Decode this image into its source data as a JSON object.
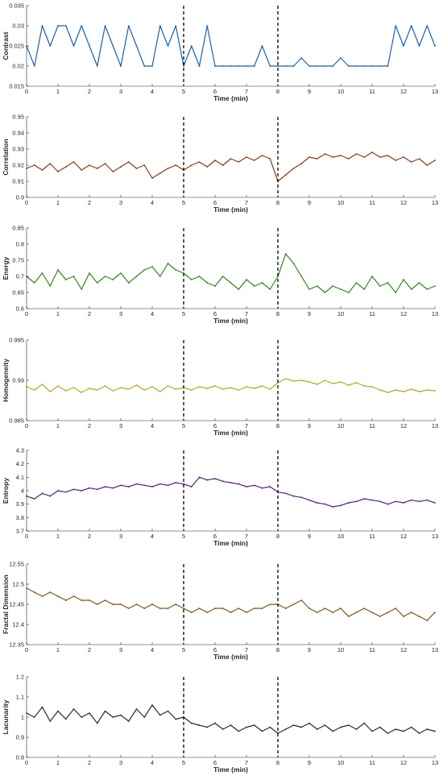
{
  "chart_data": {
    "type": "line",
    "panel_count": 7,
    "shared_x": {
      "label": "Time (min)",
      "xlim": [
        0,
        13
      ],
      "ticks": [
        "0",
        "1",
        "2",
        "3",
        "4",
        "5",
        "6",
        "7",
        "8",
        "9",
        "10",
        "11",
        "12",
        "13"
      ]
    },
    "vertical_markers_x": [
      5,
      8
    ],
    "marker_style": "black dashed lines",
    "grid": false,
    "legend": "none",
    "panels": [
      {
        "ylabel": "Contrast",
        "ylim": [
          0.015,
          0.035
        ],
        "yticks": [
          "0.015",
          "0.02",
          "0.025",
          "0.03",
          "0.035"
        ],
        "color": "#1f5fad",
        "series": {
          "x": [
            0,
            0.25,
            0.5,
            0.75,
            1,
            1.25,
            1.5,
            1.75,
            2,
            2.25,
            2.5,
            2.75,
            3,
            3.25,
            3.5,
            3.75,
            4,
            4.25,
            4.5,
            4.75,
            5,
            5.25,
            5.5,
            5.75,
            6,
            6.25,
            6.5,
            6.75,
            7,
            7.25,
            7.5,
            7.75,
            8,
            8.25,
            8.5,
            8.75,
            9,
            9.25,
            9.5,
            9.75,
            10,
            10.25,
            10.5,
            10.75,
            11,
            11.25,
            11.5,
            11.75,
            12,
            12.25,
            12.5,
            12.75,
            13
          ],
          "values": [
            0.025,
            0.02,
            0.03,
            0.025,
            0.03,
            0.03,
            0.025,
            0.03,
            0.025,
            0.02,
            0.03,
            0.025,
            0.02,
            0.03,
            0.025,
            0.02,
            0.02,
            0.03,
            0.025,
            0.03,
            0.02,
            0.025,
            0.02,
            0.03,
            0.02,
            0.02,
            0.02,
            0.02,
            0.02,
            0.02,
            0.025,
            0.02,
            0.02,
            0.02,
            0.02,
            0.022,
            0.02,
            0.02,
            0.02,
            0.02,
            0.022,
            0.02,
            0.02,
            0.02,
            0.02,
            0.02,
            0.02,
            0.03,
            0.025,
            0.03,
            0.025,
            0.03,
            0.025
          ]
        }
      },
      {
        "ylabel": "Correlation",
        "ylim": [
          0.9,
          0.95
        ],
        "yticks": [
          "0.9",
          "0.91",
          "0.92",
          "0.93",
          "0.94",
          "0.95"
        ],
        "color": "#8a3a1e",
        "series": {
          "x": [
            0,
            0.25,
            0.5,
            0.75,
            1,
            1.25,
            1.5,
            1.75,
            2,
            2.25,
            2.5,
            2.75,
            3,
            3.25,
            3.5,
            3.75,
            4,
            4.25,
            4.5,
            4.75,
            5,
            5.25,
            5.5,
            5.75,
            6,
            6.25,
            6.5,
            6.75,
            7,
            7.25,
            7.5,
            7.75,
            8,
            8.25,
            8.5,
            8.75,
            9,
            9.25,
            9.5,
            9.75,
            10,
            10.25,
            10.5,
            10.75,
            11,
            11.25,
            11.5,
            11.75,
            12,
            12.25,
            12.5,
            12.75,
            13
          ],
          "values": [
            0.918,
            0.92,
            0.917,
            0.921,
            0.916,
            0.919,
            0.922,
            0.917,
            0.92,
            0.918,
            0.921,
            0.916,
            0.919,
            0.922,
            0.918,
            0.92,
            0.912,
            0.915,
            0.918,
            0.92,
            0.917,
            0.92,
            0.922,
            0.919,
            0.923,
            0.92,
            0.924,
            0.922,
            0.925,
            0.923,
            0.926,
            0.924,
            0.91,
            0.914,
            0.918,
            0.921,
            0.925,
            0.924,
            0.927,
            0.925,
            0.926,
            0.924,
            0.927,
            0.925,
            0.928,
            0.925,
            0.926,
            0.923,
            0.925,
            0.922,
            0.924,
            0.92,
            0.923
          ]
        }
      },
      {
        "ylabel": "Energy",
        "ylim": [
          0.6,
          0.85
        ],
        "yticks": [
          "0.6",
          "0.65",
          "0.7",
          "0.75",
          "0.8",
          "0.85"
        ],
        "color": "#2e8a17",
        "series": {
          "x": [
            0,
            0.25,
            0.5,
            0.75,
            1,
            1.25,
            1.5,
            1.75,
            2,
            2.25,
            2.5,
            2.75,
            3,
            3.25,
            3.5,
            3.75,
            4,
            4.25,
            4.5,
            4.75,
            5,
            5.25,
            5.5,
            5.75,
            6,
            6.25,
            6.5,
            6.75,
            7,
            7.25,
            7.5,
            7.75,
            8,
            8.25,
            8.5,
            8.75,
            9,
            9.25,
            9.5,
            9.75,
            10,
            10.25,
            10.5,
            10.75,
            11,
            11.25,
            11.5,
            11.75,
            12,
            12.25,
            12.5,
            12.75,
            13
          ],
          "values": [
            0.7,
            0.68,
            0.71,
            0.67,
            0.72,
            0.69,
            0.7,
            0.66,
            0.71,
            0.68,
            0.7,
            0.69,
            0.71,
            0.68,
            0.7,
            0.72,
            0.73,
            0.7,
            0.74,
            0.72,
            0.71,
            0.69,
            0.7,
            0.68,
            0.67,
            0.7,
            0.68,
            0.66,
            0.69,
            0.67,
            0.68,
            0.66,
            0.7,
            0.77,
            0.74,
            0.7,
            0.66,
            0.67,
            0.65,
            0.67,
            0.66,
            0.65,
            0.68,
            0.66,
            0.7,
            0.67,
            0.68,
            0.65,
            0.69,
            0.66,
            0.68,
            0.66,
            0.67
          ]
        }
      },
      {
        "ylabel": "Homogeneity",
        "ylim": [
          0.985,
          0.995
        ],
        "yticks": [
          "0.985",
          "0.99",
          "0.995"
        ],
        "color": "#b8a825",
        "series": {
          "x": [
            0,
            0.25,
            0.5,
            0.75,
            1,
            1.25,
            1.5,
            1.75,
            2,
            2.25,
            2.5,
            2.75,
            3,
            3.25,
            3.5,
            3.75,
            4,
            4.25,
            4.5,
            4.75,
            5,
            5.25,
            5.5,
            5.75,
            6,
            6.25,
            6.5,
            6.75,
            7,
            7.25,
            7.5,
            7.75,
            8,
            8.25,
            8.5,
            8.75,
            9,
            9.25,
            9.5,
            9.75,
            10,
            10.25,
            10.5,
            10.75,
            11,
            11.25,
            11.5,
            11.75,
            12,
            12.25,
            12.5,
            12.75,
            13
          ],
          "values": [
            0.9892,
            0.9888,
            0.9895,
            0.9886,
            0.9893,
            0.9887,
            0.9891,
            0.9885,
            0.989,
            0.9888,
            0.9893,
            0.9887,
            0.9891,
            0.9889,
            0.9894,
            0.9888,
            0.9892,
            0.9886,
            0.9893,
            0.9889,
            0.9891,
            0.9888,
            0.9892,
            0.989,
            0.9893,
            0.9889,
            0.9891,
            0.9888,
            0.9892,
            0.989,
            0.9893,
            0.9889,
            0.9897,
            0.9902,
            0.9899,
            0.99,
            0.9898,
            0.9895,
            0.99,
            0.9896,
            0.9898,
            0.9894,
            0.9897,
            0.9893,
            0.9892,
            0.9888,
            0.9885,
            0.9888,
            0.9886,
            0.9889,
            0.9886,
            0.9888,
            0.9887
          ]
        }
      },
      {
        "ylabel": "Entropy",
        "ylim": [
          3.7,
          4.3
        ],
        "yticks": [
          "3.7",
          "3.8",
          "3.9",
          "4",
          "4.1",
          "4.2",
          "4.3"
        ],
        "color": "#5a2079",
        "series": {
          "x": [
            0,
            0.25,
            0.5,
            0.75,
            1,
            1.25,
            1.5,
            1.75,
            2,
            2.25,
            2.5,
            2.75,
            3,
            3.25,
            3.5,
            3.75,
            4,
            4.25,
            4.5,
            4.75,
            5,
            5.25,
            5.5,
            5.75,
            6,
            6.25,
            6.5,
            6.75,
            7,
            7.25,
            7.5,
            7.75,
            8,
            8.25,
            8.5,
            8.75,
            9,
            9.25,
            9.5,
            9.75,
            10,
            10.25,
            10.5,
            10.75,
            11,
            11.25,
            11.5,
            11.75,
            12,
            12.25,
            12.5,
            12.75,
            13
          ],
          "values": [
            3.96,
            3.94,
            3.98,
            3.96,
            4.0,
            3.99,
            4.01,
            4.0,
            4.02,
            4.01,
            4.03,
            4.02,
            4.04,
            4.03,
            4.05,
            4.04,
            4.03,
            4.05,
            4.04,
            4.06,
            4.05,
            4.03,
            4.1,
            4.08,
            4.09,
            4.07,
            4.06,
            4.05,
            4.03,
            4.04,
            4.02,
            4.03,
            3.99,
            3.98,
            3.96,
            3.95,
            3.93,
            3.91,
            3.9,
            3.88,
            3.89,
            3.91,
            3.92,
            3.94,
            3.93,
            3.92,
            3.9,
            3.92,
            3.91,
            3.93,
            3.92,
            3.93,
            3.91
          ]
        }
      },
      {
        "ylabel": "Fractal Dimension",
        "ylim": [
          12.35,
          12.55
        ],
        "yticks": [
          "12.35",
          "12.4",
          "12.45",
          "12.5",
          "12.55"
        ],
        "color": "#7a5518",
        "series": {
          "x": [
            0,
            0.25,
            0.5,
            0.75,
            1,
            1.25,
            1.5,
            1.75,
            2,
            2.25,
            2.5,
            2.75,
            3,
            3.25,
            3.5,
            3.75,
            4,
            4.25,
            4.5,
            4.75,
            5,
            5.25,
            5.5,
            5.75,
            6,
            6.25,
            6.5,
            6.75,
            7,
            7.25,
            7.5,
            7.75,
            8,
            8.25,
            8.5,
            8.75,
            9,
            9.25,
            9.5,
            9.75,
            10,
            10.25,
            10.5,
            10.75,
            11,
            11.25,
            11.5,
            11.75,
            12,
            12.25,
            12.5,
            12.75,
            13
          ],
          "values": [
            12.49,
            12.48,
            12.47,
            12.48,
            12.47,
            12.46,
            12.47,
            12.46,
            12.46,
            12.45,
            12.46,
            12.45,
            12.45,
            12.44,
            12.45,
            12.44,
            12.45,
            12.44,
            12.44,
            12.45,
            12.44,
            12.43,
            12.44,
            12.43,
            12.44,
            12.44,
            12.43,
            12.44,
            12.43,
            12.44,
            12.44,
            12.45,
            12.45,
            12.44,
            12.45,
            12.46,
            12.44,
            12.43,
            12.44,
            12.43,
            12.44,
            12.42,
            12.43,
            12.44,
            12.43,
            12.42,
            12.43,
            12.44,
            12.42,
            12.43,
            12.42,
            12.41,
            12.43
          ]
        }
      },
      {
        "ylabel": "Lacunarity",
        "ylim": [
          0.8,
          1.2
        ],
        "yticks": [
          "0.8",
          "0.9",
          "1",
          "1.1",
          "1.2"
        ],
        "color": "#2b2b2b",
        "series": {
          "x": [
            0,
            0.25,
            0.5,
            0.75,
            1,
            1.25,
            1.5,
            1.75,
            2,
            2.25,
            2.5,
            2.75,
            3,
            3.25,
            3.5,
            3.75,
            4,
            4.25,
            4.5,
            4.75,
            5,
            5.25,
            5.5,
            5.75,
            6,
            6.25,
            6.5,
            6.75,
            7,
            7.25,
            7.5,
            7.75,
            8,
            8.25,
            8.5,
            8.75,
            9,
            9.25,
            9.5,
            9.75,
            10,
            10.25,
            10.5,
            10.75,
            11,
            11.25,
            11.5,
            11.75,
            12,
            12.25,
            12.5,
            12.75,
            13
          ],
          "values": [
            1.02,
            1.0,
            1.05,
            0.98,
            1.03,
            0.99,
            1.04,
            1.0,
            1.02,
            0.97,
            1.03,
            1.0,
            1.01,
            0.98,
            1.04,
            1.0,
            1.06,
            1.01,
            1.03,
            0.99,
            1.0,
            0.97,
            0.96,
            0.95,
            0.97,
            0.94,
            0.96,
            0.93,
            0.95,
            0.96,
            0.93,
            0.95,
            0.92,
            0.94,
            0.96,
            0.95,
            0.97,
            0.94,
            0.96,
            0.93,
            0.95,
            0.96,
            0.94,
            0.97,
            0.93,
            0.95,
            0.92,
            0.94,
            0.93,
            0.95,
            0.92,
            0.94,
            0.93
          ]
        }
      }
    ]
  }
}
